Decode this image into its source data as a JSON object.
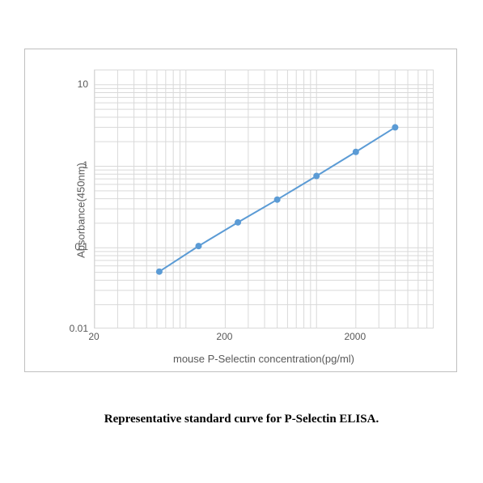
{
  "chart": {
    "type": "line",
    "xlabel": "mouse P-Selectin concentration(pg/ml)",
    "ylabel": "Absorbance(450nm)",
    "x_scale": "log",
    "y_scale": "log",
    "xlim": [
      20,
      8000
    ],
    "ylim": [
      0.01,
      15
    ],
    "xticks": [
      20,
      200,
      2000
    ],
    "yticks": [
      0.01,
      0.1,
      1,
      10
    ],
    "line_color": "#5b9bd5",
    "marker_color": "#5b9bd5",
    "marker_size": 4,
    "line_width": 2,
    "grid_color": "#d9d9d9",
    "grid_width": 1,
    "panel_border_color": "#bfbfbf",
    "background_color": "#ffffff",
    "tick_font_size": 12,
    "label_font_size": 13,
    "label_color": "#595959",
    "data": {
      "x": [
        62.5,
        125,
        250,
        500,
        1000,
        2000,
        4000
      ],
      "y": [
        0.051,
        0.105,
        0.205,
        0.39,
        0.76,
        1.5,
        3.0
      ]
    }
  },
  "caption": "Representative standard curve for P-Selectin ELISA."
}
